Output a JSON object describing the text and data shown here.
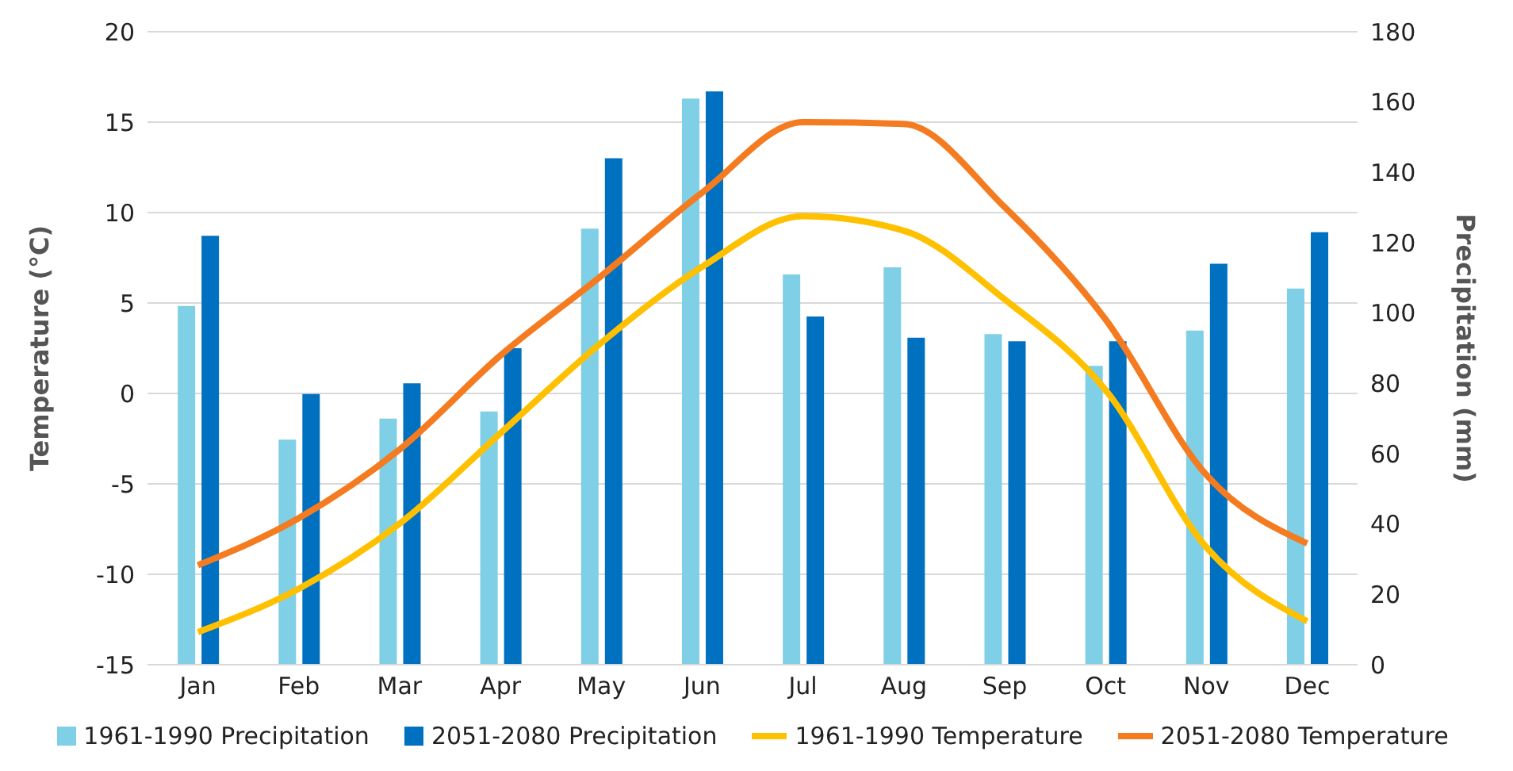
{
  "chart_data": {
    "type": "bar",
    "categories": [
      "Jan",
      "Feb",
      "Mar",
      "Apr",
      "May",
      "Jun",
      "Jul",
      "Aug",
      "Sep",
      "Oct",
      "Nov",
      "Dec"
    ],
    "series": [
      {
        "name": "1961-1990 Precipitation",
        "axis": "y2",
        "color": "#7fcfe6",
        "values": [
          102,
          64,
          70,
          72,
          124,
          161,
          111,
          113,
          94,
          85,
          95,
          107
        ]
      },
      {
        "name": "2051-2080 Precipitation",
        "axis": "y2",
        "color": "#0070c0",
        "values": [
          122,
          77,
          80,
          90,
          144,
          163,
          99,
          93,
          92,
          92,
          114,
          123
        ]
      },
      {
        "name": "1961-1990 Temperature",
        "type": "line",
        "color": "#ffc000",
        "values": [
          -13.2,
          -10.8,
          -7.2,
          -2.2,
          2.8,
          7.0,
          9.8,
          9.0,
          5.2,
          0.2,
          -8.5,
          -12.6
        ]
      },
      {
        "name": "2051-2080 Temperature",
        "type": "line",
        "color": "#f47b20",
        "values": [
          -9.5,
          -6.9,
          -3.1,
          2.1,
          6.5,
          11.1,
          15.0,
          14.9,
          10.3,
          4.1,
          -4.5,
          -8.3
        ]
      }
    ],
    "ylabel": "Temperature (°C)",
    "y2label": "Precipitation (mm)",
    "ylim": [
      -15,
      20
    ],
    "yticks": [
      -15,
      -10,
      -5,
      0,
      5,
      10,
      15,
      20
    ],
    "y2lim": [
      0,
      180
    ],
    "y2ticks": [
      0,
      20,
      40,
      60,
      80,
      100,
      120,
      140,
      160,
      180
    ],
    "grid": "y",
    "legend": "bottom",
    "marker": "none",
    "line_style": "solid"
  }
}
